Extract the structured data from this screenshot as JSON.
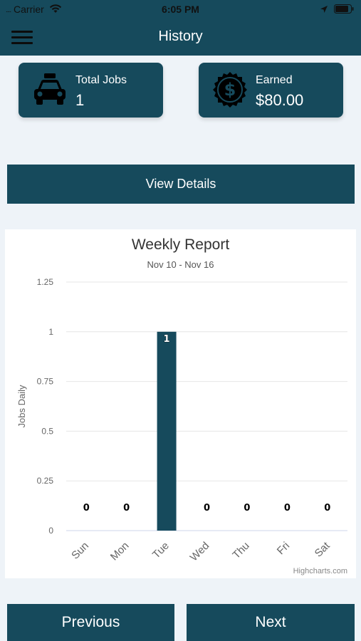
{
  "status": {
    "carrier": "Carrier",
    "time": "6:05 PM"
  },
  "nav": {
    "title": "History",
    "menu_icon": "hamburger-menu-icon"
  },
  "cards": {
    "jobs": {
      "label": "Total Jobs",
      "value": "1",
      "icon": "taxi-icon"
    },
    "earned": {
      "label": "Earned",
      "value": "$80.00",
      "icon": "dollar-badge-icon"
    }
  },
  "view_details_label": "View Details",
  "chart_data": {
    "type": "bar",
    "title": "Weekly Report",
    "subtitle": "Nov 10 - Nov 16",
    "ylabel": "Jobs Daily",
    "xlabel": "",
    "categories": [
      "Sun",
      "Mon",
      "Tue",
      "Wed",
      "Thu",
      "Fri",
      "Sat"
    ],
    "values": [
      0,
      0,
      1,
      0,
      0,
      0,
      0
    ],
    "ylim": [
      0,
      1.25
    ],
    "yticks": [
      "0",
      "0.25",
      "0.5",
      "0.75",
      "1",
      "1.25"
    ],
    "data_labels": [
      "0",
      "0",
      "1",
      "0",
      "0",
      "0",
      "0"
    ],
    "grid": true,
    "legend": "none",
    "credits": "Highcharts.com"
  },
  "footer": {
    "previous_label": "Previous",
    "next_label": "Next"
  },
  "colors": {
    "primary": "#164a5c",
    "background": "#eef3f8",
    "bar": "#164a5c"
  }
}
